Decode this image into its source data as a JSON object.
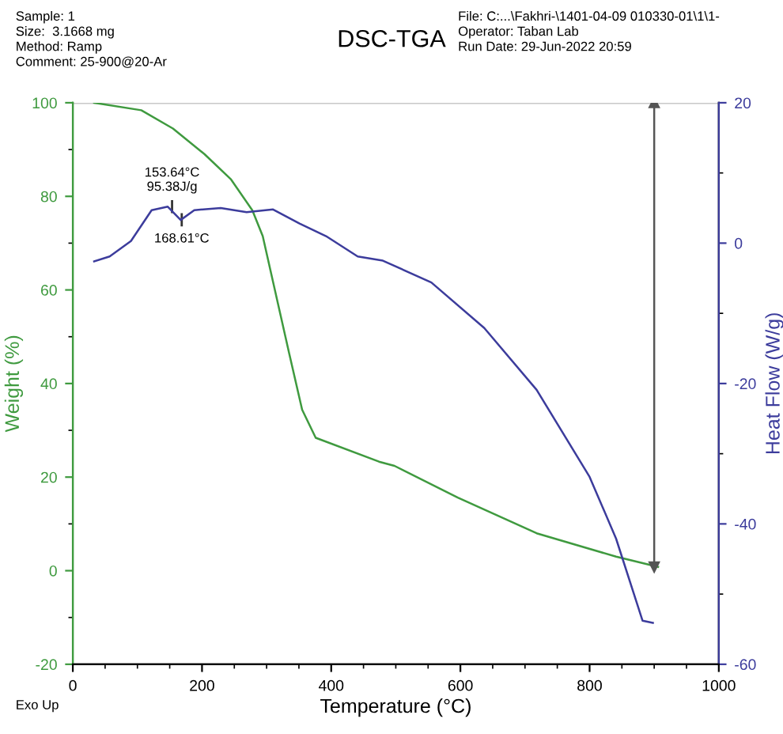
{
  "chart_data": {
    "type": "line",
    "title": "DSC-TGA",
    "xlabel": "Temperature (°C)",
    "ylabel": "Weight (%)",
    "y2label": "Heat Flow (W/g)",
    "xlim": [
      0,
      1000
    ],
    "xticks": [
      0,
      200,
      400,
      600,
      800,
      1000
    ],
    "ylim": [
      -20,
      100
    ],
    "yticks": [
      -20,
      0,
      20,
      40,
      60,
      80,
      100
    ],
    "y2lim": [
      -60,
      20
    ],
    "y2ticks": [
      -60,
      -40,
      -20,
      0,
      20
    ],
    "grid": false,
    "marker": "none",
    "line_style": "solid",
    "series": [
      {
        "color": "#3f9a3f",
        "x": [
          33,
          106,
          155,
          204,
          245,
          278,
          294,
          310,
          335,
          355,
          376,
          474,
          498,
          596,
          718,
          841,
          906
        ],
        "values": [
          100,
          98.4,
          94.5,
          89,
          83.6,
          77,
          71.5,
          61.7,
          46.4,
          34.4,
          28.4,
          23.3,
          22.4,
          15.6,
          8,
          3,
          0.8
        ]
      },
      {
        "color": "#3c3c9c",
        "axis": "y2",
        "x": [
          33,
          57,
          90,
          122,
          147,
          167,
          188,
          229,
          269,
          310,
          351,
          392,
          441,
          480,
          555,
          637,
          718,
          800,
          841,
          882,
          898
        ],
        "values": [
          -2.6,
          -1.9,
          0.3,
          4.7,
          5.2,
          3.3,
          4.7,
          5.0,
          4.4,
          4.8,
          2.8,
          1.0,
          -1.9,
          -2.5,
          -5.6,
          -12.1,
          -20.9,
          -33.3,
          -42.1,
          -53.8,
          -54.1
        ]
      },
      {
        "type": "line",
        "color": "#555555",
        "marker": "triangle",
        "x": [
          900,
          900
        ],
        "values": [
          100,
          0.8
        ]
      }
    ],
    "ref_lines": [
      {
        "axis": "y",
        "value": 100,
        "color": "#c8c8c8"
      }
    ],
    "annotations": [
      "Sample: 1\nSize:  3.1668 mg\nMethod: Ramp\nComment: 25-900@20-Ar",
      "File: C:...\\Fakhri-\\1401-04-09 010330-01\\1\\1-\nOperator: Taban Lab\nRun Date: 29-Jun-2022 20:59",
      "Exo Up",
      {
        "text": "153.64°C\n95.38J/g",
        "x": 153.64,
        "y": 77.8
      },
      {
        "text": "168.61°C",
        "x": 168.61,
        "y": 75
      }
    ]
  }
}
